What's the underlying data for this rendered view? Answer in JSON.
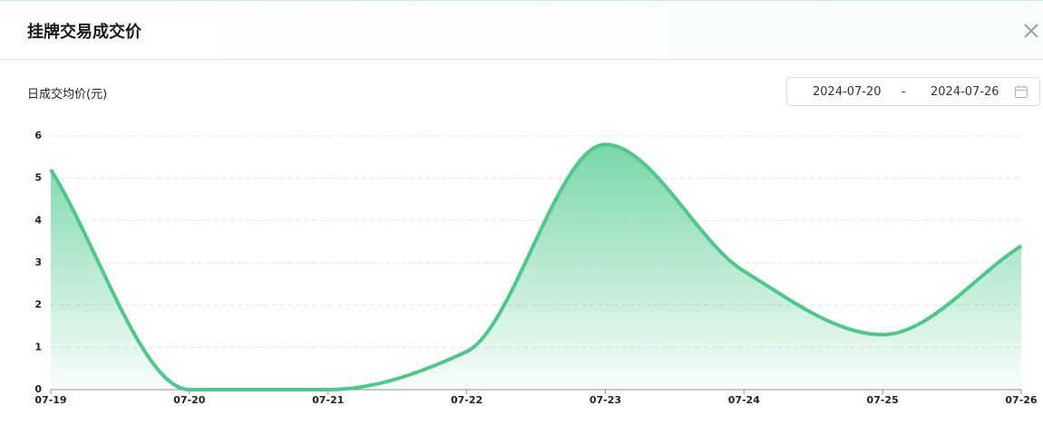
{
  "header": {
    "title": "挂牌交易成交价"
  },
  "date_range": {
    "start": "2024-07-20",
    "separator": "-",
    "end": "2024-07-26"
  },
  "chart_data": {
    "type": "area",
    "y_label": "日成交均价(元)",
    "categories": [
      "07-19",
      "07-20",
      "07-21",
      "07-22",
      "07-23",
      "07-24",
      "07-25",
      "07-26"
    ],
    "values": [
      5.2,
      0,
      0,
      0.9,
      5.8,
      2.8,
      1.3,
      3.4
    ],
    "color": "#4cc98a",
    "ylim": [
      0,
      6
    ],
    "yticks": [
      0,
      1,
      2,
      3,
      4,
      5,
      6
    ],
    "grid": true,
    "smooth": true
  }
}
